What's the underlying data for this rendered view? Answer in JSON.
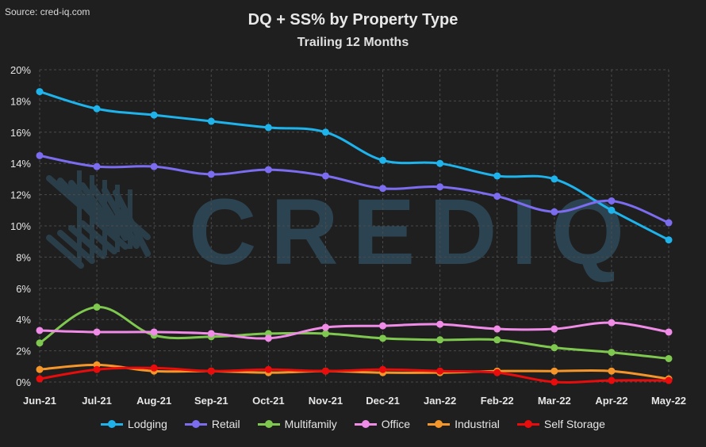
{
  "header": {
    "source": "Source: cred-iq.com",
    "title": "DQ + SS% by Property Type",
    "subtitle": "Trailing 12 Months",
    "watermark": "CREDIQ"
  },
  "chart_data": {
    "type": "line",
    "title": "DQ + SS% by Property Type",
    "subtitle": "Trailing 12 Months",
    "x": [
      "Jun-21",
      "Jul-21",
      "Aug-21",
      "Sep-21",
      "Oct-21",
      "Nov-21",
      "Dec-21",
      "Jan-22",
      "Feb-22",
      "Mar-22",
      "Apr-22",
      "May-22"
    ],
    "ylim": [
      0,
      20
    ],
    "yticks": [
      "0%",
      "2%",
      "4%",
      "6%",
      "8%",
      "10%",
      "12%",
      "14%",
      "16%",
      "18%",
      "20%"
    ],
    "grid": true,
    "legend_position": "bottom",
    "series": [
      {
        "name": "Lodging",
        "color": "#1fb3ec",
        "values": [
          18.6,
          17.5,
          17.1,
          16.7,
          16.3,
          16.0,
          14.2,
          14.0,
          13.2,
          13.0,
          11.0,
          9.1
        ]
      },
      {
        "name": "Retail",
        "color": "#7b6cf0",
        "values": [
          14.5,
          13.8,
          13.8,
          13.3,
          13.6,
          13.2,
          12.4,
          12.5,
          11.9,
          10.9,
          11.6,
          10.2
        ]
      },
      {
        "name": "Multifamily",
        "color": "#7ec850",
        "values": [
          2.5,
          4.8,
          3.0,
          2.9,
          3.1,
          3.1,
          2.8,
          2.7,
          2.7,
          2.2,
          1.9,
          1.5
        ]
      },
      {
        "name": "Office",
        "color": "#f08ce8",
        "values": [
          3.3,
          3.2,
          3.2,
          3.1,
          2.8,
          3.5,
          3.6,
          3.7,
          3.4,
          3.4,
          3.8,
          3.2
        ]
      },
      {
        "name": "Industrial",
        "color": "#f5962a",
        "values": [
          0.8,
          1.1,
          0.7,
          0.7,
          0.6,
          0.7,
          0.6,
          0.6,
          0.7,
          0.7,
          0.7,
          0.2
        ]
      },
      {
        "name": "Self Storage",
        "color": "#e80c0c",
        "values": [
          0.2,
          0.8,
          0.9,
          0.7,
          0.8,
          0.7,
          0.8,
          0.7,
          0.6,
          0.0,
          0.1,
          0.1
        ]
      }
    ]
  }
}
